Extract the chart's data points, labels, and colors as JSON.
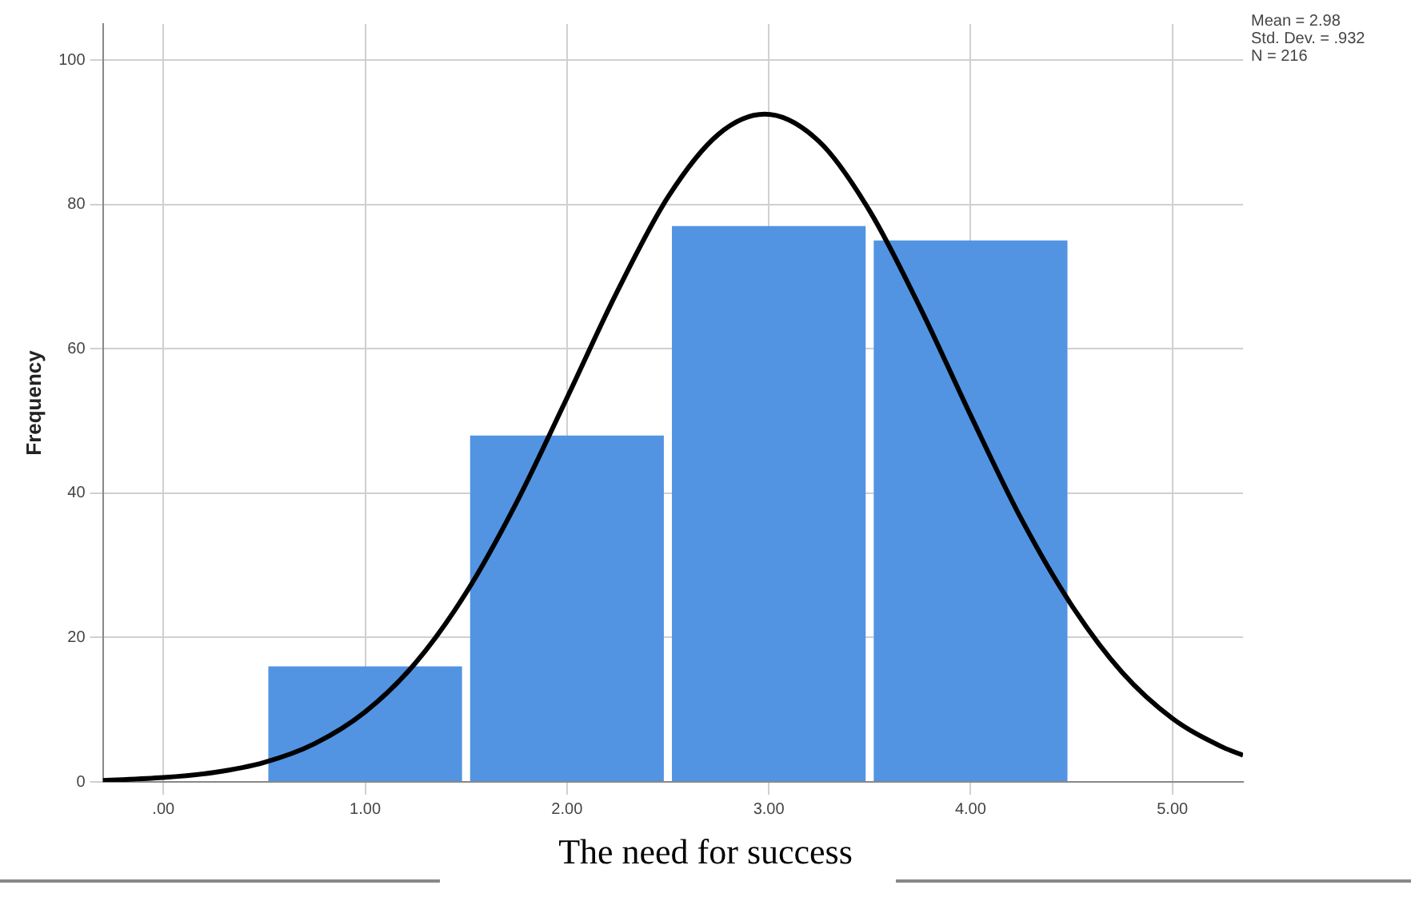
{
  "chart_data": {
    "type": "histogram",
    "xlabel": "The need for success",
    "ylabel": "Frequency",
    "bins": [
      0.5,
      1.5,
      2.5,
      3.5,
      4.5
    ],
    "values": [
      16,
      48,
      77,
      75
    ],
    "color": "#5294e2",
    "series": [
      {
        "type": "line",
        "color": "#000000",
        "x": [
          -0.3,
          0,
          0.25,
          0.5,
          0.75,
          1,
          1.25,
          1.5,
          1.75,
          2,
          2.25,
          2.5,
          2.75,
          2.98,
          3.25,
          3.5,
          3.75,
          4,
          4.25,
          4.5,
          4.75,
          5,
          5.25,
          5.35
        ],
        "values": [
          0.2,
          0.6,
          1.3,
          2.7,
          5.3,
          9.7,
          16.5,
          26.2,
          38.7,
          53.2,
          68,
          81,
          89.7,
          92.5,
          88.7,
          79.1,
          65.7,
          50.8,
          36.5,
          24.5,
          15.2,
          8.8,
          4.8,
          3.7
        ]
      }
    ],
    "xlim": [
      -0.3,
      5.35
    ],
    "xticks": [
      {
        "value": 0,
        "label": ".00"
      },
      {
        "value": 1,
        "label": "1.00"
      },
      {
        "value": 2,
        "label": "2.00"
      },
      {
        "value": 3,
        "label": "3.00"
      },
      {
        "value": 4,
        "label": "4.00"
      },
      {
        "value": 5,
        "label": "5.00"
      }
    ],
    "ylim": [
      0,
      105
    ],
    "yticks": [
      0,
      20,
      40,
      60,
      80,
      100
    ],
    "grid": true,
    "annotations": [
      "Mean = 2.98",
      "Std. Dev. = .932",
      "N = 216"
    ]
  }
}
